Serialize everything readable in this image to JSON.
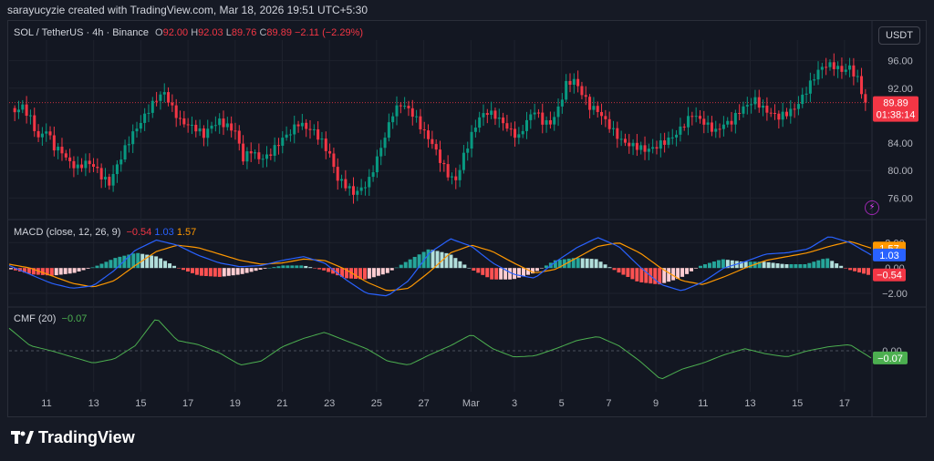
{
  "header": {
    "attribution": "sarayucyzie created with TradingView.com, Mar 18, 2026 19:51 UTC+5:30"
  },
  "symbol": {
    "name": "SOL / TetherUS · 4h · Binance",
    "o_label": "O",
    "o": "92.00",
    "h_label": "H",
    "h": "92.03",
    "l_label": "L",
    "l": "89.76",
    "c_label": "C",
    "c": "89.89",
    "change": "−2.11 (−2.29%)"
  },
  "currency_button": "USDT",
  "price_badge": {
    "price": "89.89",
    "countdown": "01:38:14"
  },
  "macd": {
    "label": "MACD (close, 12, 26, 9)",
    "hist": "−0.54",
    "macd": "1.03",
    "signal": "1.57",
    "badge_signal": "1.57",
    "badge_macd": "1.03",
    "badge_hist": "−0.54"
  },
  "cmf": {
    "label": "CMF (20)",
    "value": "−0.07",
    "badge": "−0.07"
  },
  "axes": {
    "price_ticks": [
      "96.00",
      "92.00",
      "84.00",
      "80.00",
      "76.00"
    ],
    "macd_ticks": [
      "2.00",
      "0.00",
      "−2.00"
    ],
    "cmf_ticks": [
      "0.00"
    ],
    "x_ticks": [
      "11",
      "13",
      "15",
      "17",
      "19",
      "21",
      "23",
      "25",
      "27",
      "Mar",
      "3",
      "5",
      "7",
      "9",
      "11",
      "13",
      "15",
      "17"
    ]
  },
  "brand": "TradingView",
  "colors": {
    "up": "#089981",
    "down": "#f23645",
    "macd": "#2962ff",
    "signal": "#ff9800",
    "cmf": "#4caf50",
    "bg": "#131722"
  },
  "chart_data": [
    {
      "type": "candlestick",
      "title": "SOL / TetherUS · 4h · Binance",
      "ylim": [
        73,
        99
      ],
      "close_path": [
        88.5,
        89.2,
        87.6,
        84.8,
        86.1,
        83.4,
        82.6,
        81.0,
        80.4,
        81.3,
        80.9,
        79.2,
        78.0,
        80.6,
        83.2,
        85.5,
        87.2,
        88.9,
        90.4,
        91.2,
        89.0,
        87.3,
        86.8,
        86.2,
        85.1,
        86.4,
        87.1,
        86.5,
        85.9,
        81.8,
        82.9,
        81.6,
        81.9,
        83.3,
        84.8,
        85.7,
        86.9,
        86.1,
        85.6,
        84.2,
        82.4,
        78.9,
        77.9,
        76.6,
        77.2,
        78.6,
        81.9,
        85.1,
        88.4,
        89.6,
        88.8,
        87.4,
        85.6,
        84.1,
        81.6,
        79.3,
        78.4,
        82.1,
        85.3,
        87.9,
        88.6,
        87.9,
        86.8,
        85.6,
        84.9,
        87.4,
        88.9,
        87.1,
        86.7,
        88.9,
        92.6,
        93.3,
        91.4,
        89.3,
        88.6,
        87.1,
        85.7,
        84.5,
        83.9,
        83.5,
        82.9,
        83.1,
        83.9,
        84.6,
        85.5,
        86.8,
        88.1,
        87.3,
        86.5,
        85.8,
        86.9,
        87.2,
        88.6,
        89.4,
        90.2,
        89.1,
        88.5,
        87.9,
        88.3,
        88.9,
        90.6,
        92.7,
        94.7,
        95.5,
        95.2,
        94.4,
        94.9,
        93.3,
        89.9
      ],
      "current_price": 89.89
    },
    {
      "type": "line",
      "title": "MACD (close, 12, 26, 9)",
      "ylim": [
        -3,
        3.6
      ],
      "series": [
        {
          "name": "MACD",
          "values": [
            0.2,
            -0.5,
            -1.2,
            -1.6,
            -1.4,
            -0.2,
            1.4,
            2.2,
            1.8,
            1.0,
            0.4,
            0.1,
            0.2,
            0.6,
            0.9,
            0.4,
            -0.9,
            -2.0,
            -2.2,
            -1.0,
            1.2,
            2.3,
            1.7,
            0.4,
            -0.5,
            -0.8,
            0.5,
            1.6,
            2.4,
            1.7,
            0.1,
            -1.3,
            -1.8,
            -1.1,
            0.0,
            0.5,
            1.1,
            1.2,
            1.5,
            2.5,
            2.0,
            1.03
          ]
        },
        {
          "name": "Signal",
          "values": [
            0.3,
            0.0,
            -0.6,
            -1.2,
            -1.5,
            -1.0,
            0.2,
            1.3,
            1.8,
            1.6,
            1.1,
            0.6,
            0.3,
            0.4,
            0.7,
            0.6,
            -0.1,
            -1.1,
            -1.8,
            -1.6,
            -0.3,
            1.2,
            1.8,
            1.3,
            0.4,
            -0.4,
            -0.1,
            0.8,
            1.7,
            2.0,
            1.2,
            0.0,
            -1.0,
            -1.3,
            -0.7,
            0.0,
            0.6,
            0.9,
            1.2,
            1.7,
            2.1,
            1.57
          ]
        },
        {
          "name": "Histogram",
          "values": [
            -0.1,
            -0.5,
            -0.6,
            -0.4,
            0.1,
            0.8,
            1.2,
            0.9,
            0.0,
            -0.6,
            -0.7,
            -0.5,
            -0.1,
            0.2,
            0.2,
            -0.2,
            -0.8,
            -0.9,
            -0.4,
            0.6,
            1.5,
            1.1,
            -0.1,
            -0.9,
            -0.9,
            -0.4,
            0.6,
            0.8,
            0.7,
            -0.3,
            -1.1,
            -1.3,
            -0.8,
            0.2,
            0.7,
            0.5,
            0.5,
            0.3,
            0.3,
            0.8,
            -0.1,
            -0.54
          ]
        }
      ]
    },
    {
      "type": "line",
      "title": "CMF (20)",
      "ylim": [
        -0.4,
        0.4
      ],
      "series": [
        {
          "name": "CMF",
          "values": [
            0.22,
            0.05,
            0.0,
            -0.06,
            -0.12,
            -0.08,
            0.05,
            0.32,
            0.1,
            0.06,
            -0.02,
            -0.14,
            -0.1,
            0.04,
            0.12,
            0.18,
            0.1,
            0.02,
            -0.1,
            -0.14,
            -0.04,
            0.05,
            0.16,
            0.02,
            -0.06,
            -0.05,
            0.02,
            0.1,
            0.14,
            0.05,
            -0.1,
            -0.28,
            -0.18,
            -0.12,
            -0.04,
            0.02,
            -0.03,
            -0.06,
            0.0,
            0.04,
            0.06,
            -0.07
          ]
        }
      ]
    }
  ]
}
